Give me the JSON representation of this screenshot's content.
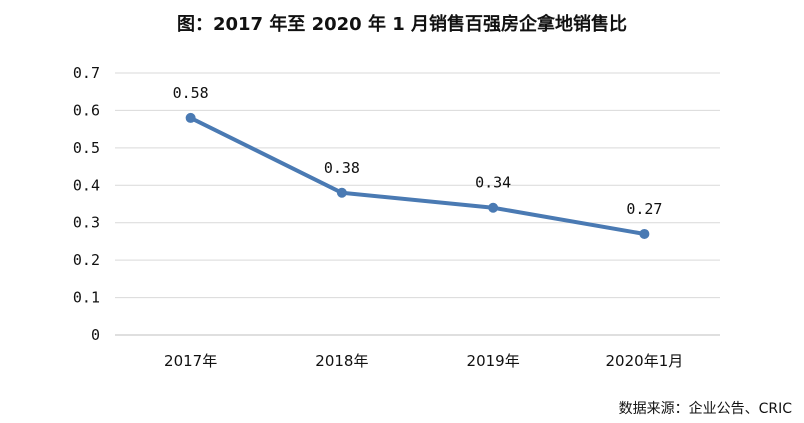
{
  "chart_data": {
    "type": "line",
    "title": "图：2017 年至 2020 年 1 月销售百强房企拿地销售比",
    "xlabel": "",
    "ylabel": "",
    "categories": [
      "2017年",
      "2018年",
      "2019年",
      "2020年1月"
    ],
    "series": [
      {
        "values": [
          0.58,
          0.38,
          0.34,
          0.27
        ],
        "labels": [
          "0.58",
          "0.38",
          "0.34",
          "0.27"
        ],
        "color": "#4a7ab3"
      }
    ],
    "ylim": [
      0,
      0.7
    ],
    "yticks": [
      "0",
      "0.1",
      "0.2",
      "0.3",
      "0.4",
      "0.5",
      "0.6",
      "0.7"
    ],
    "grid": true,
    "legend": "none"
  },
  "source": "数据来源：企业公告、CRIC",
  "colors": {
    "line": "#4a7ab3",
    "grid": "#d9d9d9",
    "text": "#111111"
  }
}
